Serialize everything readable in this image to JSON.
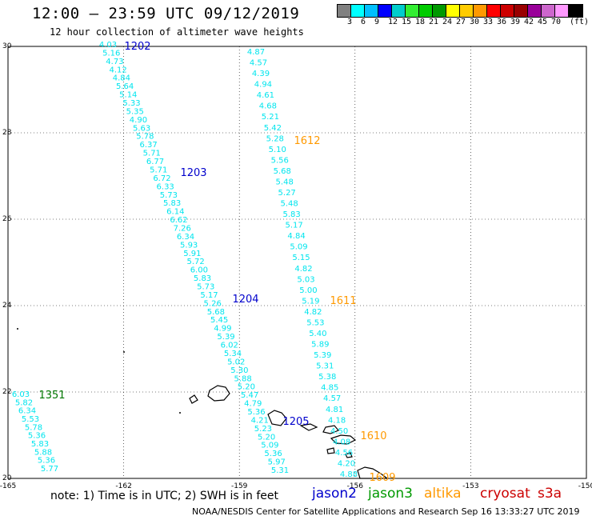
{
  "header": {
    "title": "12:00 – 23:59 UTC 09/12/2019",
    "subtitle": "12 hour collection of altimeter wave heights"
  },
  "legend": {
    "colors": [
      "#808080",
      "#00ffff",
      "#00bfff",
      "#0000ff",
      "#00cccc",
      "#33ee33",
      "#00cc00",
      "#009900",
      "#ffff00",
      "#ffcc00",
      "#ff9900",
      "#ff0000",
      "#cc0000",
      "#990000",
      "#990099",
      "#cc66cc",
      "#ff99ff",
      "#000000"
    ],
    "labels": [
      "3",
      "6",
      "9",
      "12",
      "15",
      "18",
      "21",
      "24",
      "27",
      "30",
      "33",
      "36",
      "39",
      "42",
      "45",
      "70",
      "(ft)"
    ]
  },
  "axes": {
    "lon_labels": [
      "-165",
      "-162",
      "-159",
      "-156",
      "-153",
      "-150"
    ],
    "lat_labels": [
      "30",
      "28",
      "26",
      "24",
      "22",
      "20"
    ]
  },
  "tracks": [
    {
      "color": "#00e5ee",
      "values": [
        "4.03",
        "5.16",
        "4.73",
        "4.12",
        "4.84",
        "5.64",
        "5.14",
        "5.33",
        "5.35",
        "4.90",
        "5.63",
        "5.78",
        "6.37",
        "5.71",
        "6.77",
        "5.71",
        "6.72",
        "6.33",
        "5.73",
        "5.83",
        "6.14",
        "6.62",
        "7.26",
        "6.34",
        "5.93",
        "5.91",
        "5.72",
        "6.00",
        "5.83",
        "5.73",
        "5.17",
        "5.26",
        "5.68",
        "5.45",
        "4.99",
        "5.39",
        "6.02",
        "5.34",
        "5.02",
        "5.30",
        "5.88",
        "5.20",
        "5.47",
        "4.79",
        "5.36",
        "4.21",
        "5.23",
        "5.20",
        "5.09",
        "5.36",
        "5.97",
        "5.31"
      ]
    },
    {
      "color": "#00e5ee",
      "values": [
        "4.87",
        "4.57",
        "4.39",
        "4.94",
        "4.61",
        "4.68",
        "5.21",
        "5.42",
        "5.28",
        "5.10",
        "5.56",
        "5.68",
        "5.48",
        "5.27",
        "5.48",
        "5.83",
        "5.17",
        "4.84",
        "5.09",
        "5.15",
        "4.82",
        "5.03",
        "5.00",
        "5.19",
        "4.82",
        "5.53",
        "5.40",
        "5.89",
        "5.39",
        "5.31",
        "5.38",
        "4.85",
        "4.57",
        "4.81",
        "4.18",
        "4.50",
        "4.08",
        "4.56",
        "4.20",
        "4.88"
      ]
    },
    {
      "color": "#00e5ee",
      "values": [
        "6.03",
        "5.82",
        "6.34",
        "5.53",
        "5.78",
        "5.36",
        "5.83",
        "5.88",
        "5.36",
        "5.77"
      ]
    }
  ],
  "pass_labels": [
    {
      "text": "1202",
      "color": "#0000cc"
    },
    {
      "text": "1203",
      "color": "#0000cc"
    },
    {
      "text": "1204",
      "color": "#0000cc"
    },
    {
      "text": "1205",
      "color": "#0000cc"
    },
    {
      "text": "1612",
      "color": "#ff9900"
    },
    {
      "text": "1611",
      "color": "#ff9900"
    },
    {
      "text": "1610",
      "color": "#ff9900"
    },
    {
      "text": "1609",
      "color": "#ff9900"
    },
    {
      "text": "1351",
      "color": "#007700"
    }
  ],
  "note": "note: 1) Time is in UTC; 2) SWH is in feet",
  "satellites": [
    {
      "name": "jason2",
      "color": "#0000cc"
    },
    {
      "name": "jason3",
      "color": "#009900"
    },
    {
      "name": "altika",
      "color": "#ff9900"
    },
    {
      "name": "cryosat",
      "color": "#cc0000"
    },
    {
      "name": "s3a",
      "color": "#cc0000"
    }
  ],
  "footer": "NOAA/NESDIS Center for Satellite Applications and Research   Sep 16 13:33:27 UTC 2019"
}
